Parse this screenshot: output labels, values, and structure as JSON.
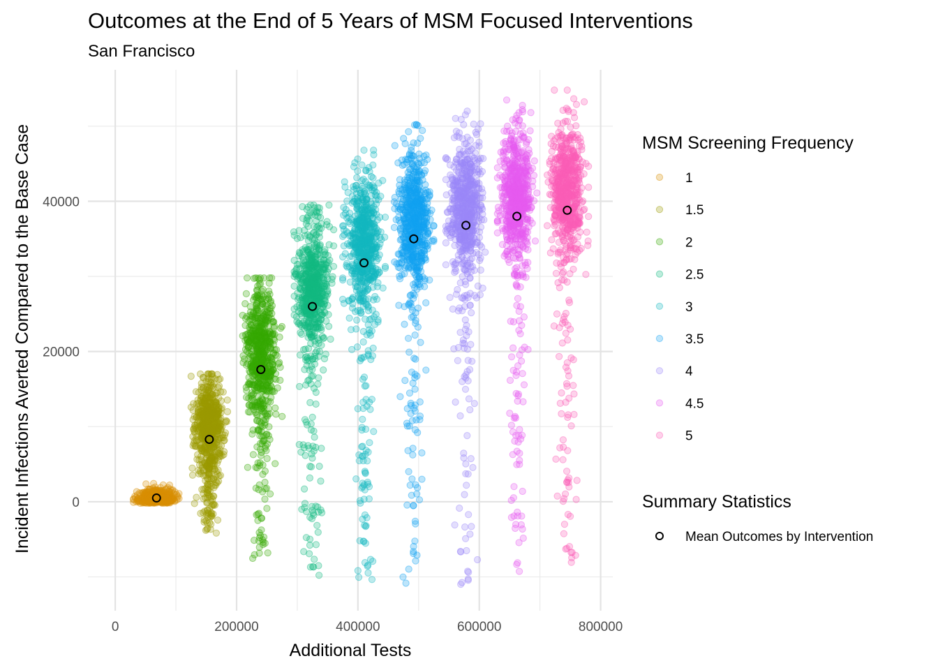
{
  "chart_data": {
    "type": "scatter",
    "title": "Outcomes at the End of 5 Years of MSM Focused Interventions",
    "subtitle": "San Francisco",
    "xlabel": "Additional Tests",
    "ylabel": "Incident Infections Averted Compared to the Base Case",
    "xlim": [
      -45000,
      820000
    ],
    "ylim": [
      -14500,
      57500
    ],
    "x_ticks": [
      0,
      200000,
      400000,
      600000,
      800000
    ],
    "x_tick_labels": [
      "0",
      "200000",
      "400000",
      "600000",
      "800000"
    ],
    "y_ticks": [
      0,
      20000,
      40000
    ],
    "y_tick_labels": [
      "0",
      "20000",
      "40000"
    ],
    "grid": true,
    "legend_position": "right",
    "color_legend_title": "MSM Screening Frequency",
    "shape_legend_title": "Summary Statistics",
    "mean_label": "Mean Outcomes by Intervention",
    "series": [
      {
        "name": "1",
        "color": "#D98E04",
        "mean": [
          68000,
          500
        ],
        "x_spread": [
          30000,
          108000
        ],
        "y_range": [
          -300,
          5000
        ],
        "core_sd": 900,
        "tail_low": 0
      },
      {
        "name": "1.5",
        "color": "#9C9A00",
        "mean": [
          155000,
          8300
        ],
        "x_spread": [
          125000,
          185000
        ],
        "y_range": [
          -4200,
          17000
        ],
        "core_sd": 3200,
        "tail_low": -4200
      },
      {
        "name": "2",
        "color": "#36A802",
        "mean": [
          240000,
          17600
        ],
        "x_spread": [
          210000,
          275000
        ],
        "y_range": [
          -7800,
          29800
        ],
        "core_sd": 4200,
        "tail_low": -7800
      },
      {
        "name": "2.5",
        "color": "#13B980",
        "mean": [
          325000,
          26000
        ],
        "x_spread": [
          295000,
          360000
        ],
        "y_range": [
          -10000,
          39500
        ],
        "core_sd": 4300,
        "tail_low": -10000
      },
      {
        "name": "3",
        "color": "#13B7C0",
        "mean": [
          410000,
          31800
        ],
        "x_spread": [
          375000,
          445000
        ],
        "y_range": [
          -11200,
          46800
        ],
        "core_sd": 4300,
        "tail_low": -11200
      },
      {
        "name": "3.5",
        "color": "#12A2F1",
        "mean": [
          492000,
          35000
        ],
        "x_spread": [
          460000,
          525000
        ],
        "y_range": [
          -11600,
          50200
        ],
        "core_sd": 4300,
        "tail_low": -11600
      },
      {
        "name": "4",
        "color": "#9B87F8",
        "mean": [
          578000,
          36800
        ],
        "x_spread": [
          545000,
          612000
        ],
        "y_range": [
          -11000,
          52000
        ],
        "core_sd": 4300,
        "tail_low": -11000
      },
      {
        "name": "4.5",
        "color": "#E65BF0",
        "mean": [
          662000,
          38000
        ],
        "x_spread": [
          630000,
          695000
        ],
        "y_range": [
          -9800,
          53500
        ],
        "core_sd": 4200,
        "tail_low": -9800
      },
      {
        "name": "5",
        "color": "#FB5EB6",
        "mean": [
          745000,
          38800
        ],
        "x_spread": [
          712000,
          780000
        ],
        "y_range": [
          -8300,
          54800
        ],
        "core_sd": 4200,
        "tail_low": -8300
      }
    ]
  }
}
